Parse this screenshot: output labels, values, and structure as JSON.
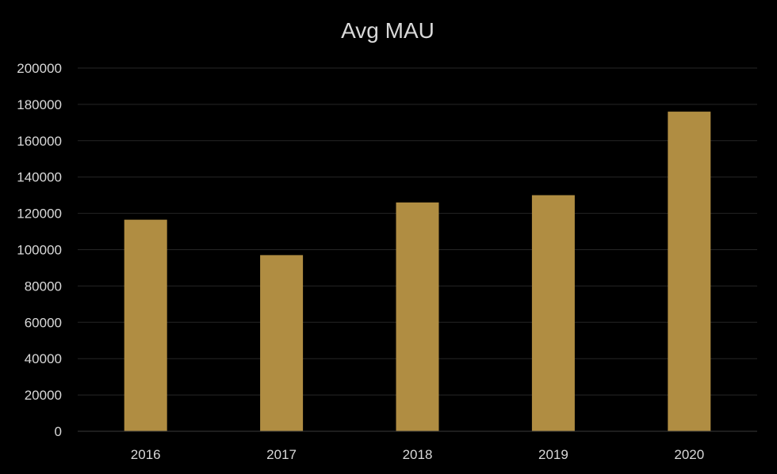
{
  "chart_data": {
    "type": "bar",
    "title": "Avg MAU",
    "xlabel": "",
    "ylabel": "",
    "categories": [
      "2016",
      "2017",
      "2018",
      "2019",
      "2020"
    ],
    "values": [
      116500,
      97000,
      126000,
      130000,
      176000
    ],
    "ylim": [
      0,
      200000
    ],
    "yticks": [
      0,
      20000,
      40000,
      60000,
      80000,
      100000,
      120000,
      140000,
      160000,
      180000,
      200000
    ],
    "grid": true,
    "legend": "none",
    "colors": {
      "background": "#000000",
      "bar": "#b08d42",
      "text": "#d9d9d9",
      "grid": "#262626"
    }
  }
}
